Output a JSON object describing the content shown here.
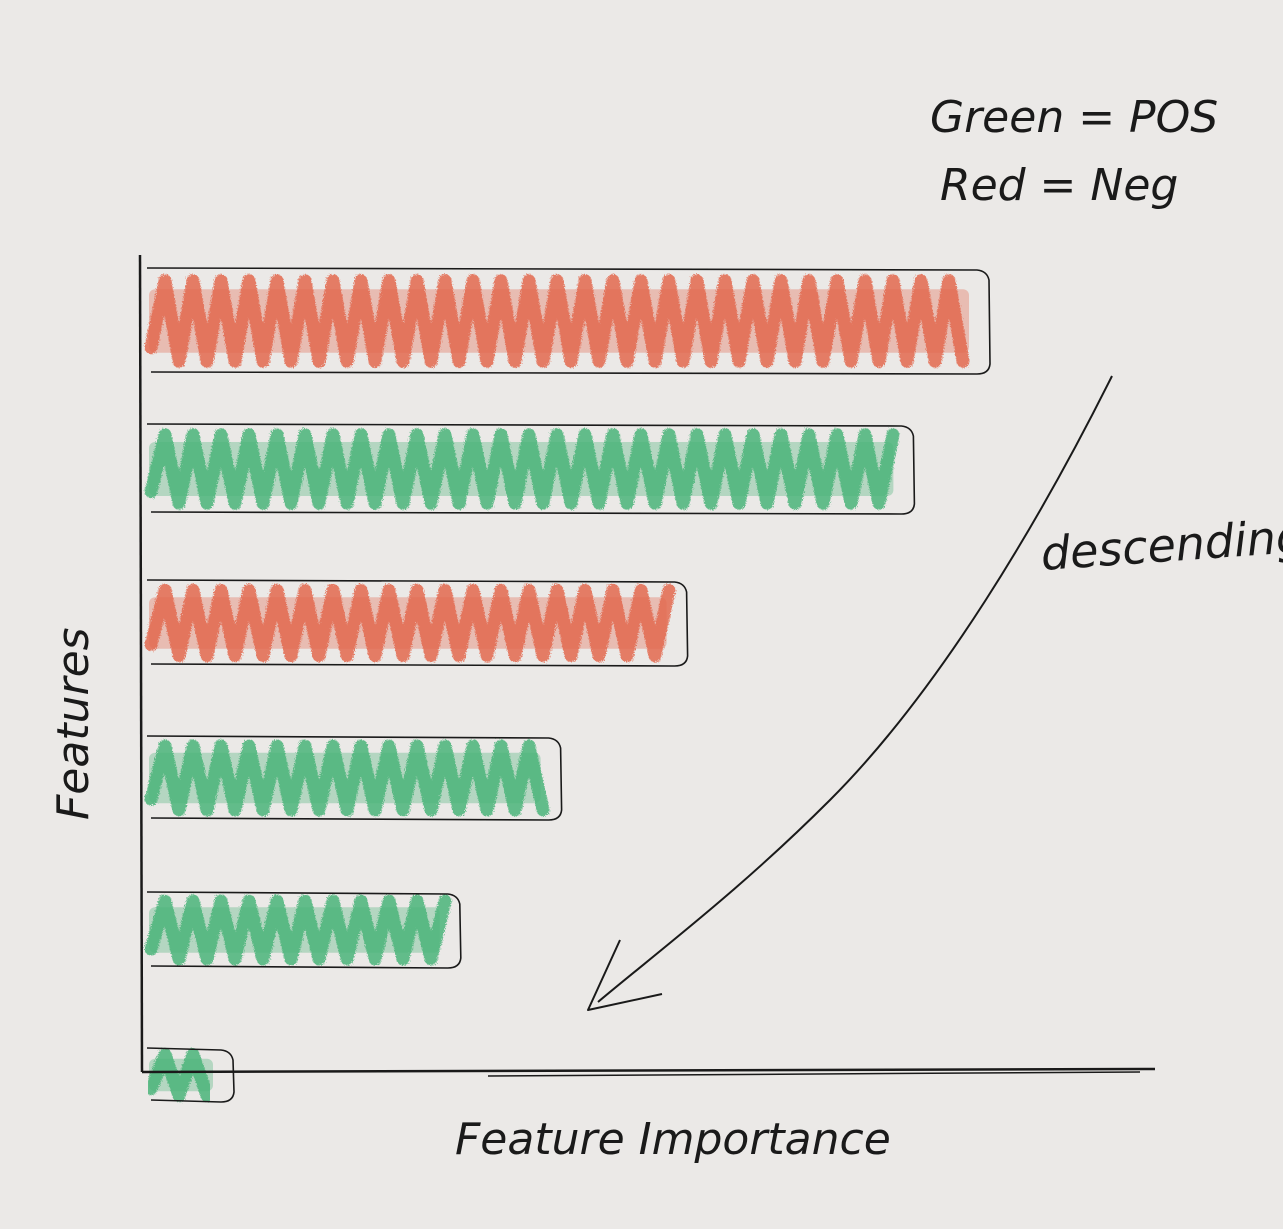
{
  "chart_data": {
    "type": "bar",
    "orientation": "horizontal",
    "title": "",
    "xlabel": "Feature Importance",
    "ylabel": "Features",
    "legend_lines": [
      "Green = POS",
      "Red = Neg"
    ],
    "annotation": "descending",
    "xlim": [
      0,
      100
    ],
    "bars": [
      {
        "value": 100,
        "sign": "neg"
      },
      {
        "value": 91,
        "sign": "pos"
      },
      {
        "value": 64,
        "sign": "neg"
      },
      {
        "value": 49,
        "sign": "pos"
      },
      {
        "value": 37,
        "sign": "pos"
      },
      {
        "value": 10,
        "sign": "pos"
      }
    ],
    "colors": {
      "pos": "#4cb57a",
      "neg": "#e3694f",
      "ink": "#1a1a1a",
      "paper": "#ebe9e7"
    }
  }
}
